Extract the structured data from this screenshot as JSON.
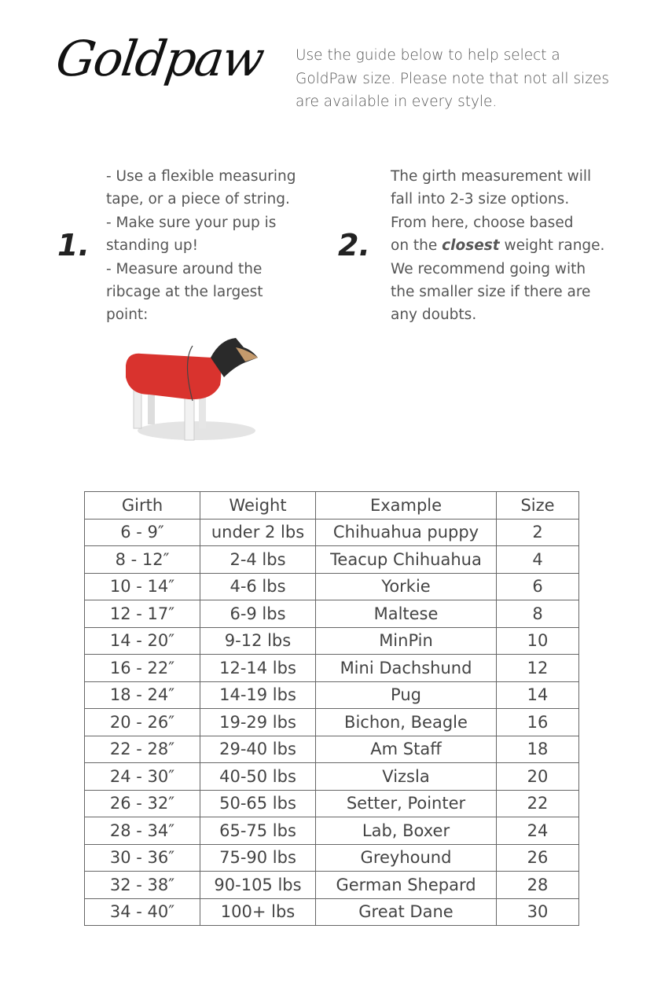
{
  "logo": "Goldpaw",
  "intro": "Use the guide below to help select a GoldPaw size. Please note that not all sizes are available in every style.",
  "steps": [
    {
      "number": "1.",
      "lines": [
        "- Use a flexible measuring",
        "tape, or a piece of string.",
        "- Make sure your pup is",
        "standing up!",
        "- Measure around the",
        "ribcage at the largest",
        "point:"
      ]
    },
    {
      "number": "2.",
      "lines": [
        "The girth measurement will",
        "fall into 2-3 size options.",
        "From here, choose based"
      ],
      "line4_before": "on the ",
      "line4_emph": "closest",
      "line4_after": " weight range.",
      "lines_after": [
        "We recommend going with",
        "the smaller size if there are",
        "any doubts."
      ]
    }
  ],
  "table": {
    "headers": [
      "Girth",
      "Weight",
      "Example",
      "Size"
    ],
    "rows": [
      [
        "6 - 9″",
        "under 2 lbs",
        "Chihuahua puppy",
        "2"
      ],
      [
        "8 - 12″",
        "2-4 lbs",
        "Teacup Chihuahua",
        "4"
      ],
      [
        "10 - 14″",
        "4-6 lbs",
        "Yorkie",
        "6"
      ],
      [
        "12 - 17″",
        "6-9 lbs",
        "Maltese",
        "8"
      ],
      [
        "14 - 20″",
        "9-12 lbs",
        "MinPin",
        "10"
      ],
      [
        "16 - 22″",
        "12-14 lbs",
        "Mini Dachshund",
        "12"
      ],
      [
        "18 - 24″",
        "14-19 lbs",
        "Pug",
        "14"
      ],
      [
        "20 - 26″",
        "19-29 lbs",
        "Bichon, Beagle",
        "16"
      ],
      [
        "22 - 28″",
        "29-40 lbs",
        "Am Staff",
        "18"
      ],
      [
        "24 - 30″",
        "40-50 lbs",
        "Vizsla",
        "20"
      ],
      [
        "26 - 32″",
        "50-65 lbs",
        "Setter, Pointer",
        "22"
      ],
      [
        "28 - 34″",
        "65-75 lbs",
        "Lab, Boxer",
        "24"
      ],
      [
        "30 - 36″",
        "75-90 lbs",
        "Greyhound",
        "26"
      ],
      [
        "32 - 38″",
        "90-105 lbs",
        "German Shepard",
        "28"
      ],
      [
        "34 - 40″",
        "100+ lbs",
        "Great Dane",
        "30"
      ]
    ]
  },
  "colors": {
    "coat": "#d9332e",
    "text": "#444444"
  }
}
